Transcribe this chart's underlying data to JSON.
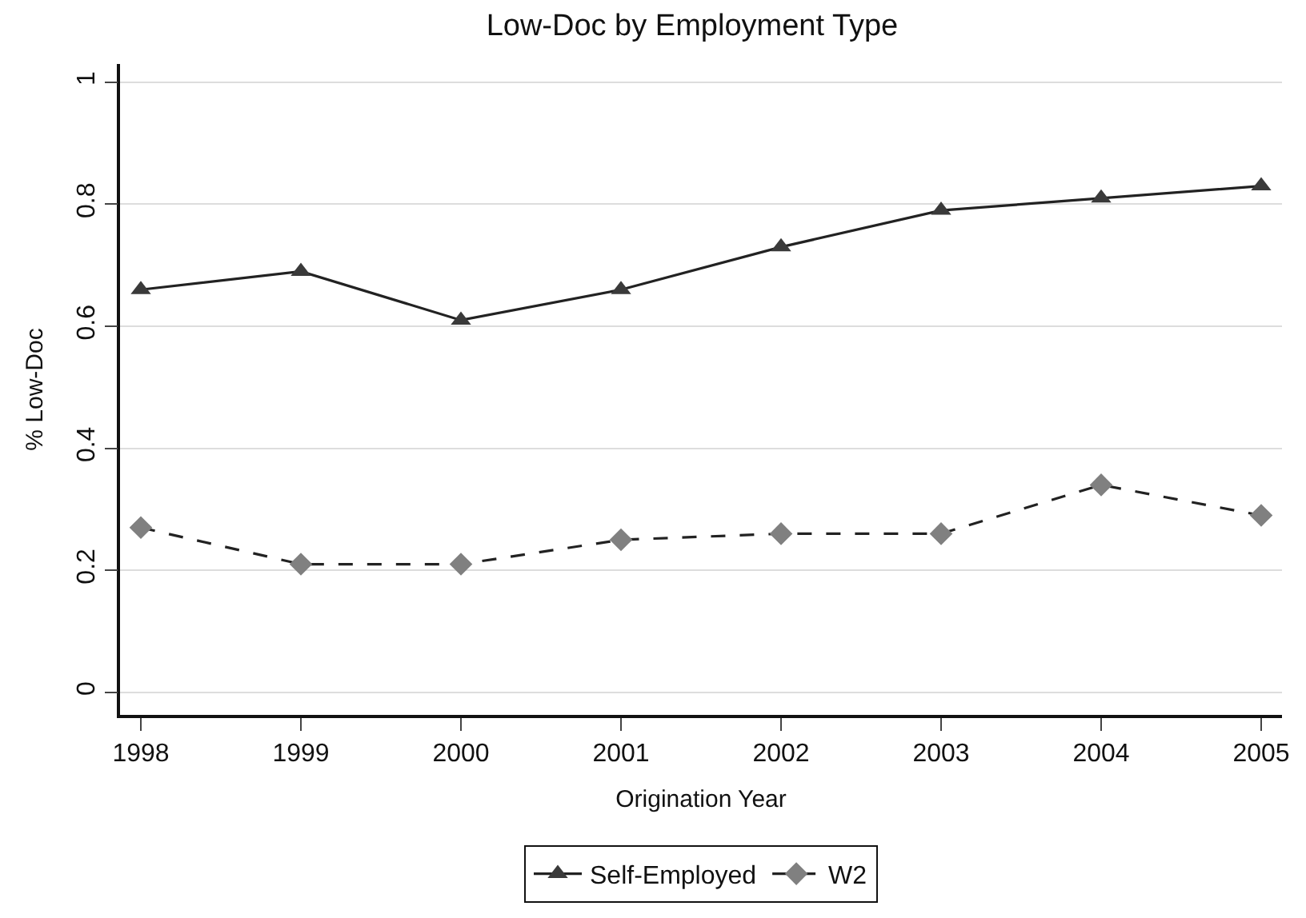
{
  "chart_data": {
    "type": "line",
    "title": "Low-Doc by Employment Type",
    "xlabel": "Origination Year",
    "ylabel": "% Low-Doc",
    "x": [
      1998,
      1999,
      2000,
      2001,
      2002,
      2003,
      2004,
      2005
    ],
    "series": [
      {
        "name": "Self-Employed",
        "color": "#3a3a3a",
        "marker": "triangle",
        "line_style": "solid",
        "values": [
          0.66,
          0.69,
          0.61,
          0.66,
          0.73,
          0.79,
          0.81,
          0.83
        ]
      },
      {
        "name": "W2",
        "color": "#808080",
        "marker": "diamond",
        "line_style": "dashed",
        "values": [
          0.27,
          0.21,
          0.21,
          0.25,
          0.26,
          0.26,
          0.34,
          0.29
        ]
      }
    ],
    "xlim": [
      1997.87,
      2005.13
    ],
    "xticks": [
      1998,
      1999,
      2000,
      2001,
      2002,
      2003,
      2004,
      2005
    ],
    "ylim": [
      -0.037,
      1.03
    ],
    "yticks": [
      0,
      0.2,
      0.4,
      0.6,
      0.8,
      1
    ],
    "grid": "y",
    "legend": "bottom"
  }
}
